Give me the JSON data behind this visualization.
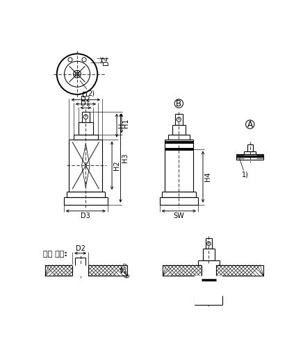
{
  "bg_color": "#ffffff",
  "line_color": "#000000",
  "fs": 7.0,
  "fs_korean": 8.0,
  "lw": 0.8,
  "lw_thick": 2.5,
  "lw_dim": 0.6,
  "lw_hatch": 0.45,
  "korean_text": "조립 지침:",
  "label_2": "2)",
  "label_1": "1)"
}
